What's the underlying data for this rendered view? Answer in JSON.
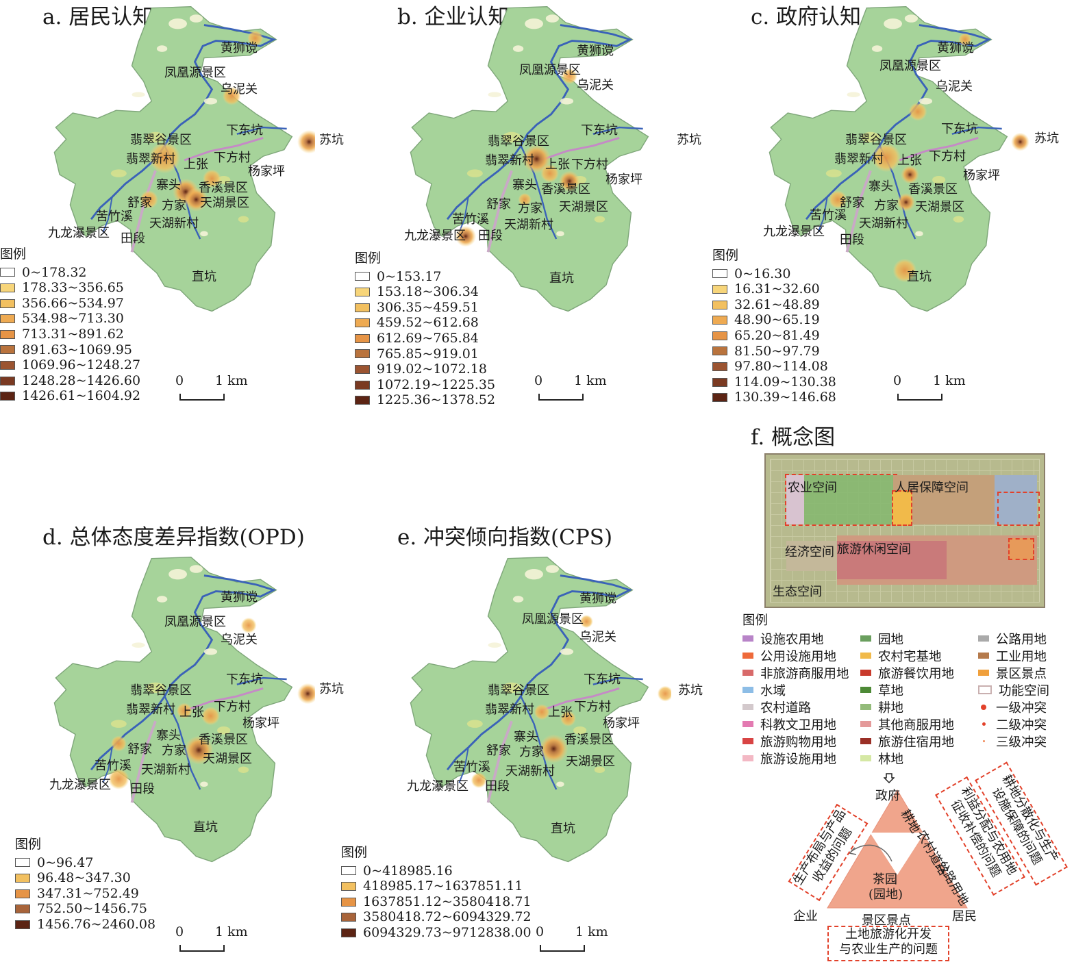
{
  "panels": {
    "a": {
      "title": "a. 居民认知",
      "places": [
        "黄狮谠",
        "凤凰源景区",
        "乌泥关",
        "下东坑",
        "苏坑",
        "翡翠谷景区",
        "翡翠新村",
        "上张",
        "下方村",
        "杨家坪",
        "寨头",
        "香溪景区",
        "舒家",
        "方家",
        "天湖景区",
        "苦竹溪",
        "天湖新村",
        "九龙瀑景区",
        "田段",
        "直坑"
      ],
      "legend_title": "图例",
      "legend": [
        "0~178.32",
        "178.33~356.65",
        "356.66~534.97",
        "534.98~713.30",
        "713.31~891.62",
        "891.63~1069.95",
        "1069.96~1248.27",
        "1248.28~1426.60",
        "1426.61~1604.92"
      ],
      "scale": {
        "zero": "0",
        "one": "1 km"
      }
    },
    "b": {
      "title": "b. 企业认知",
      "places": [
        "黄狮谠",
        "凤凰源景区",
        "乌泥关",
        "下东坑",
        "苏坑",
        "翡翠谷景区",
        "翡翠新村",
        "上张",
        "下方村",
        "杨家坪",
        "寨头",
        "香溪景区",
        "舒家",
        "方家",
        "天湖景区",
        "苦竹溪",
        "天湖新村",
        "九龙瀑景区",
        "田段",
        "直坑"
      ],
      "legend_title": "图例",
      "legend": [
        "0~153.17",
        "153.18~306.34",
        "306.35~459.51",
        "459.52~612.68",
        "612.69~765.84",
        "765.85~919.01",
        "919.02~1072.18",
        "1072.19~1225.35",
        "1225.36~1378.52"
      ],
      "scale": {
        "zero": "0",
        "one": "1 km"
      }
    },
    "c": {
      "title": "c. 政府认知",
      "places": [
        "黄狮谠",
        "凤凰源景区",
        "乌泥关",
        "下东坑",
        "苏坑",
        "翡翠谷景区",
        "翡翠新村",
        "上张",
        "下方村",
        "杨家坪",
        "寨头",
        "香溪景区",
        "舒家",
        "方家",
        "天湖景区",
        "苦竹溪",
        "天湖新村",
        "九龙瀑景区",
        "田段",
        "直坑"
      ],
      "legend_title": "图例",
      "legend": [
        "0~16.30",
        "16.31~32.60",
        "32.61~48.89",
        "48.90~65.19",
        "65.20~81.49",
        "81.50~97.79",
        "97.80~114.08",
        "114.09~130.38",
        "130.39~146.68"
      ],
      "scale": {
        "zero": "0",
        "one": "1 km"
      }
    },
    "d": {
      "title": "d. 总体态度差异指数(OPD)",
      "places": [
        "黄狮谠",
        "凤凰源景区",
        "乌泥关",
        "下东坑",
        "苏坑",
        "翡翠谷景区",
        "翡翠新村",
        "上张",
        "下方村",
        "杨家坪",
        "寨头",
        "香溪景区",
        "舒家",
        "方家",
        "天湖景区",
        "苦竹溪",
        "天湖新村",
        "九龙瀑景区",
        "田段",
        "直坑"
      ],
      "legend_title": "图例",
      "legend": [
        "0~96.47",
        "96.48~347.30",
        "347.31~752.49",
        "752.50~1456.75",
        "1456.76~2460.08"
      ],
      "scale": {
        "zero": "0",
        "one": "1 km"
      }
    },
    "e": {
      "title": "e. 冲突倾向指数(CPS)",
      "places": [
        "黄狮谠",
        "凤凰源景区",
        "乌泥关",
        "下东坑",
        "苏坑",
        "翡翠谷景区",
        "翡翠新村",
        "上张",
        "下方村",
        "杨家坪",
        "寨头",
        "香溪景区",
        "舒家",
        "方家",
        "天湖景区",
        "苦竹溪",
        "天湖新村",
        "九龙瀑景区",
        "田段",
        "直坑"
      ],
      "legend_title": "图例",
      "legend": [
        "0~418985.16",
        "418985.17~1637851.11",
        "1637851.12~3580418.71",
        "3580418.72~6094329.72",
        "6094329.73~9712838.00"
      ],
      "scale": {
        "zero": "0",
        "one": "1 km"
      }
    }
  },
  "legend_colors_9": [
    "#ffffff",
    "#f7d57a",
    "#f2c060",
    "#eeaa52",
    "#e69446",
    "#b9733d",
    "#9b5431",
    "#7a3a22",
    "#5c2414"
  ],
  "legend_colors_5": [
    "#ffffff",
    "#f2c060",
    "#e69446",
    "#a8643a",
    "#5c2414"
  ],
  "concept": {
    "title": "f. 概念图",
    "zones": {
      "agri": "农业空间",
      "living": "人居保障空间",
      "economy": "经济空间",
      "tourism": "旅游休闲空间",
      "ecology": "生态空间"
    },
    "legend_title": "图例",
    "legend_cols": [
      [
        {
          "label": "设施农用地",
          "color": "#b884c8"
        },
        {
          "label": "公用设施用地",
          "color": "#ee6a3a"
        },
        {
          "label": "非旅游商服用地",
          "color": "#d86a6a"
        },
        {
          "label": "水域",
          "color": "#8dbde6"
        },
        {
          "label": "农村道路",
          "color": "#d3c9cc"
        },
        {
          "label": "科教文卫用地",
          "color": "#e37ab1"
        },
        {
          "label": "旅游购物用地",
          "color": "#d84444"
        },
        {
          "label": "旅游设施用地",
          "color": "#f3b8c4"
        }
      ],
      [
        {
          "label": "园地",
          "color": "#6a9f5e"
        },
        {
          "label": "农村宅基地",
          "color": "#f1ba4a"
        },
        {
          "label": "旅游餐饮用地",
          "color": "#c83a2c"
        },
        {
          "label": "草地",
          "color": "#4d8a36"
        },
        {
          "label": "耕地",
          "color": "#93bb7a"
        },
        {
          "label": "其他商服用地",
          "color": "#e49a9a"
        },
        {
          "label": "旅游住宿用地",
          "color": "#9a2f26"
        },
        {
          "label": "林地",
          "color": "#d5e8a4"
        }
      ],
      [
        {
          "label": "公路用地",
          "color": "#aaaaaa"
        },
        {
          "label": "工业用地",
          "color": "#b57a4c"
        },
        {
          "label": "景区景点",
          "color": "#f0a03c"
        },
        {
          "label": "功能空间",
          "color": "#ffffff"
        },
        {
          "label": "一级冲突",
          "color": "#e2412a"
        },
        {
          "label": "二级冲突",
          "color": "#e2412a"
        },
        {
          "label": "三级冲突",
          "color": "#f08a5a"
        }
      ]
    ],
    "actors": {
      "gov": "政府",
      "ent": "企业",
      "res": "居民"
    },
    "center": [
      "茶园",
      "(园地)"
    ],
    "edges": {
      "cultivated": "耕地",
      "village_road": "农村道路",
      "highway": "公路用地",
      "scenic": "景区景点"
    },
    "issues": {
      "top_right": [
        "耕地分散化与生产",
        "设施保障的问题"
      ],
      "top_right_inner": [
        "利益分配与农用地",
        "征收补偿的问题"
      ],
      "left": [
        "生产布局与产品",
        "收益的问题"
      ],
      "bottom": [
        "土地旅游化开发",
        "与农业生产的问题"
      ]
    }
  }
}
